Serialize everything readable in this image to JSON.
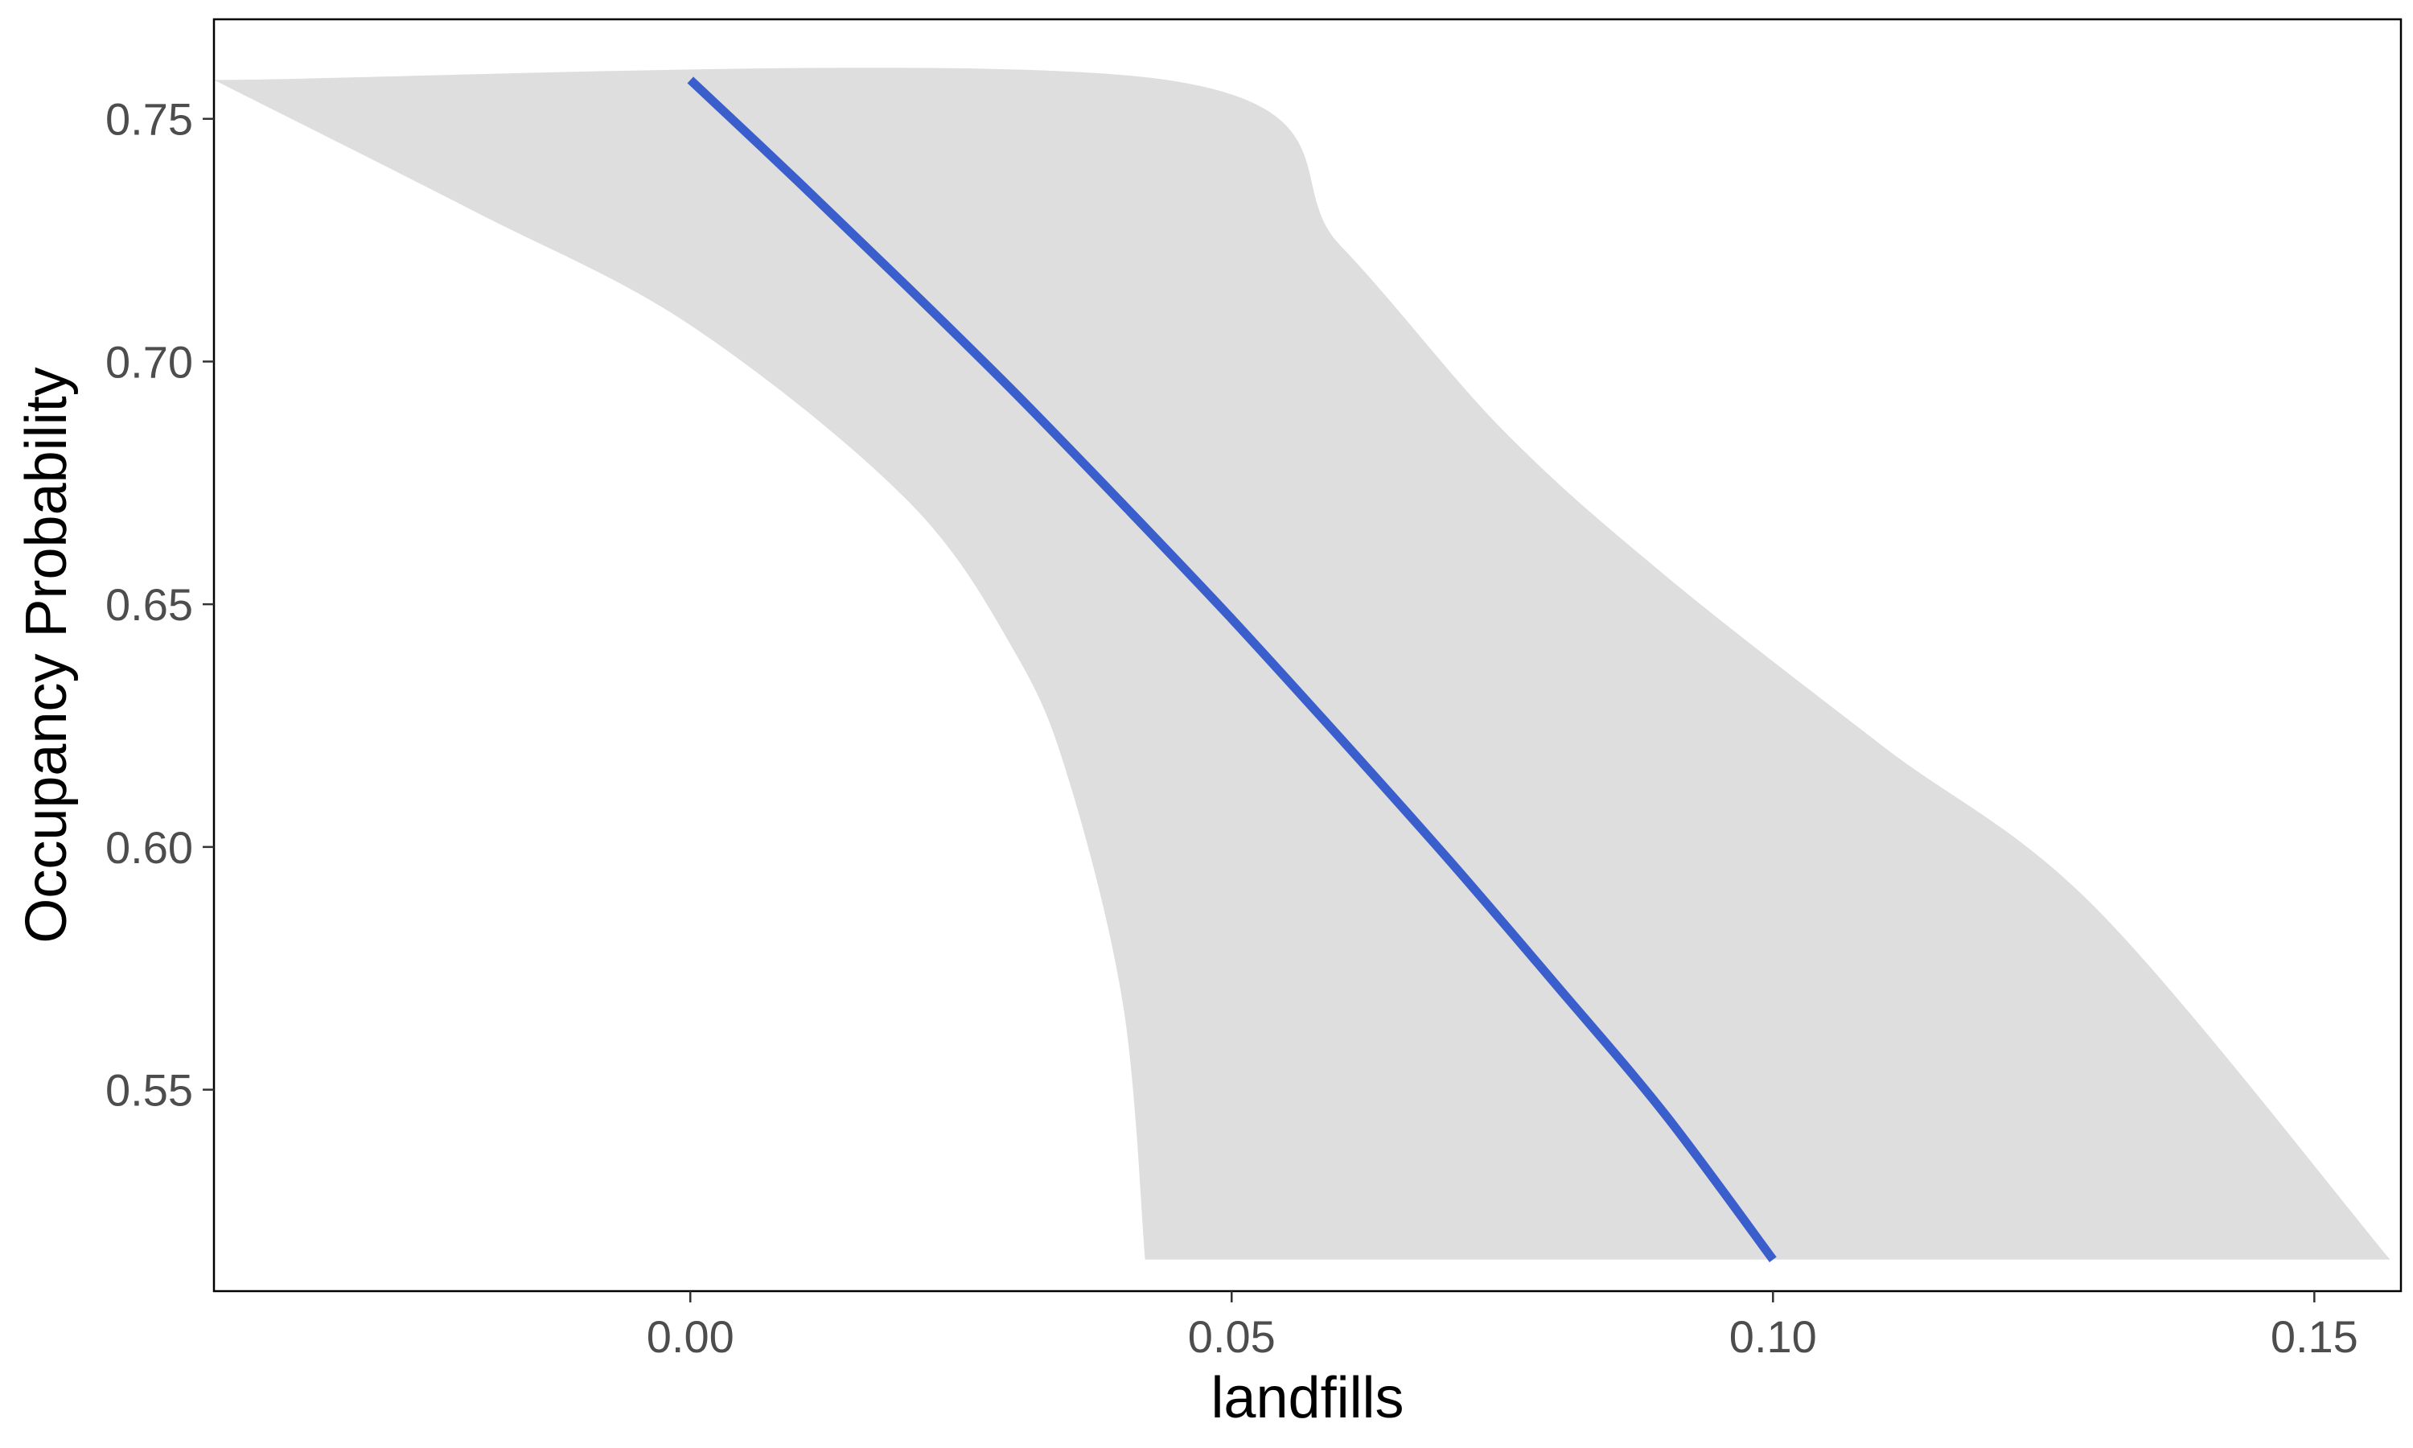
{
  "chart_data": {
    "type": "line",
    "xlabel": "landfills",
    "ylabel": "Occupancy Probability",
    "xlim": [
      -0.044,
      0.158
    ],
    "ylim": [
      0.5085,
      0.7705
    ],
    "xticks": [
      0.0,
      0.05,
      0.1,
      0.15
    ],
    "xtick_labels": [
      "0.00",
      "0.05",
      "0.10",
      "0.15"
    ],
    "yticks": [
      0.55,
      0.6,
      0.65,
      0.7,
      0.75
    ],
    "ytick_labels": [
      "0.55",
      "0.60",
      "0.65",
      "0.70",
      "0.75"
    ],
    "grid": false,
    "line": {
      "color": "#3a5fcd",
      "x": [
        0.0,
        0.01,
        0.02,
        0.03,
        0.04,
        0.05,
        0.06,
        0.07,
        0.08,
        0.09,
        0.1
      ],
      "y": [
        0.758,
        0.737,
        0.7155,
        0.6935,
        0.6705,
        0.647,
        0.6225,
        0.5975,
        0.5715,
        0.545,
        0.515
      ]
    },
    "confidence_band": {
      "color": "#dedede",
      "upper": {
        "x": [
          -0.044,
          0.044,
          0.06,
          0.075,
          0.09,
          0.11,
          0.13,
          0.157
        ],
        "y": [
          0.758,
          0.758,
          0.724,
          0.686,
          0.656,
          0.621,
          0.587,
          0.515
        ]
      },
      "lower": {
        "x": [
          -0.044,
          -0.02,
          0.0,
          0.02,
          0.03,
          0.035,
          0.04,
          0.042
        ],
        "y": [
          0.758,
          0.731,
          0.7075,
          0.6715,
          0.64,
          0.6135,
          0.567,
          0.515
        ]
      }
    }
  }
}
